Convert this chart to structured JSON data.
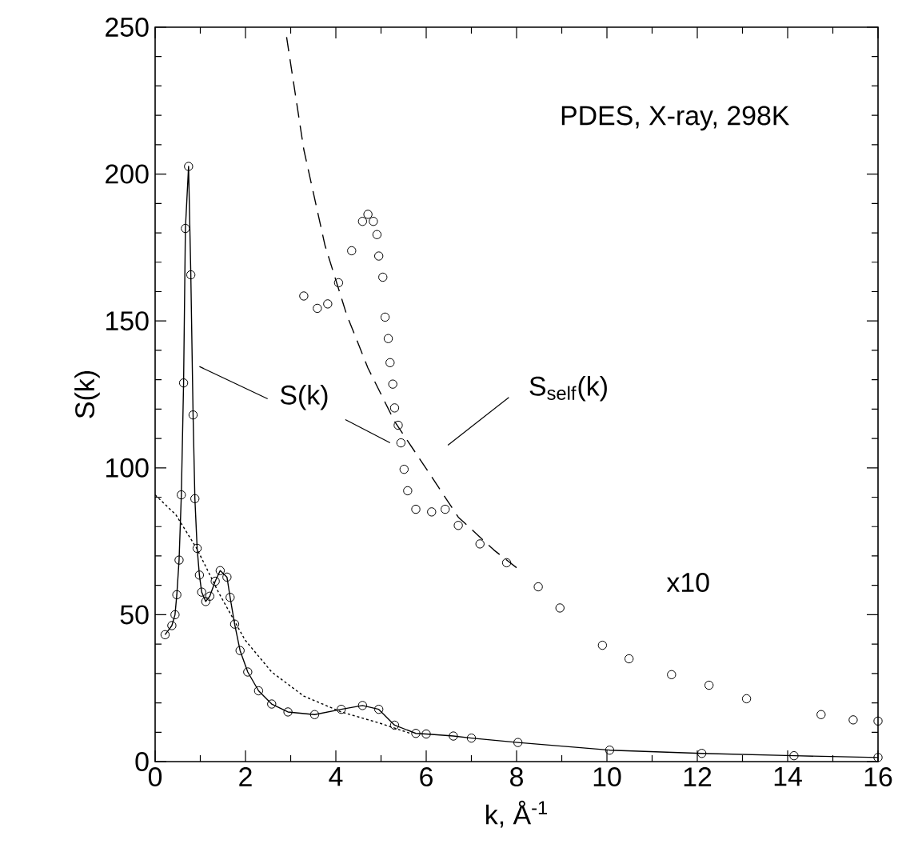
{
  "chart_data": {
    "type": "line",
    "xlabel": "k, Å$^{-1}$",
    "ylabel": "S(k)",
    "xlim": [
      0,
      16
    ],
    "ylim": [
      0,
      250
    ],
    "xticks": [
      0,
      2,
      4,
      6,
      8,
      10,
      12,
      14,
      16
    ],
    "yticks": [
      0,
      50,
      100,
      150,
      200,
      250
    ],
    "grid": false,
    "annotations": [
      "PDES, X-ray, 298K",
      "S(k)",
      "S$_{self}$(k)",
      "x10"
    ],
    "series": [
      {
        "marker": "circle",
        "line_style": "solid",
        "color": "#000000",
        "x": [
          0.22,
          0.37,
          0.44,
          0.48,
          0.53,
          0.58,
          0.63,
          0.67,
          0.74,
          0.79,
          0.84,
          0.88,
          0.93,
          0.98,
          1.03,
          1.12,
          1.21,
          1.33,
          1.44,
          1.59,
          1.66,
          1.76,
          1.88,
          2.05,
          2.29,
          2.58,
          2.94,
          3.53,
          4.12,
          4.59,
          4.95,
          5.3,
          5.77,
          6.0,
          6.6,
          7.0,
          8.03,
          10.06,
          12.1,
          14.14,
          16
        ],
        "values": [
          43.2,
          46.3,
          50,
          56.8,
          68.6,
          90.8,
          128.9,
          181.5,
          202.6,
          165.7,
          118,
          89.5,
          72.6,
          63.5,
          57.7,
          54.5,
          56.3,
          61.4,
          65,
          62.8,
          55.9,
          46.8,
          37.8,
          30.5,
          24.1,
          19.6,
          16.9,
          16,
          17.8,
          19.1,
          17.8,
          12.4,
          9.6,
          9.4,
          8.7,
          8,
          6.5,
          3.9,
          2.8,
          2,
          1.4
        ]
      },
      {
        "type": "scatter",
        "marker": "circle",
        "color": "#000000",
        "x": [
          3.29,
          3.59,
          3.82,
          4.06,
          4.35,
          4.59,
          4.71,
          4.83,
          4.91,
          4.95,
          5.04,
          5.09,
          5.16,
          5.2,
          5.26,
          5.3,
          5.38,
          5.44,
          5.51,
          5.59,
          5.77,
          6.12,
          6.42,
          6.71,
          7.19,
          7.78,
          8.48,
          8.96,
          9.9,
          10.49,
          11.43,
          12.26,
          13.09,
          14.74,
          15.45,
          16
        ],
        "values": [
          158.5,
          154.3,
          155.8,
          163,
          173.9,
          183.9,
          186.3,
          183.9,
          179.4,
          172.1,
          164.9,
          151.3,
          144,
          135.8,
          128.5,
          120.4,
          114.5,
          108.5,
          99.5,
          92.2,
          85.9,
          85,
          85.9,
          80.4,
          74.1,
          67.7,
          59.5,
          52.3,
          39.6,
          35,
          29.6,
          26,
          21.4,
          16,
          14.2,
          13.8
        ]
      },
      {
        "marker": "none",
        "line_style": "dashed",
        "color": "#000000",
        "x": [
          2.91,
          3.29,
          3.76,
          4.24,
          4.71,
          5.3,
          6.01,
          6.71,
          7.5,
          8.0
        ],
        "values": [
          246.6,
          208.4,
          175.7,
          152.1,
          134,
          115.8,
          99.5,
          83.2,
          72,
          66
        ]
      },
      {
        "marker": "none",
        "line_style": "dotted",
        "color": "#000000",
        "x": [
          0,
          0.46,
          0.93,
          1.4,
          1.99,
          2.58,
          3.29,
          4.12,
          4.95,
          5.65
        ],
        "values": [
          90.8,
          84,
          72.3,
          57.7,
          41.4,
          30.5,
          22.3,
          16.9,
          13.2,
          9.6
        ]
      }
    ]
  }
}
